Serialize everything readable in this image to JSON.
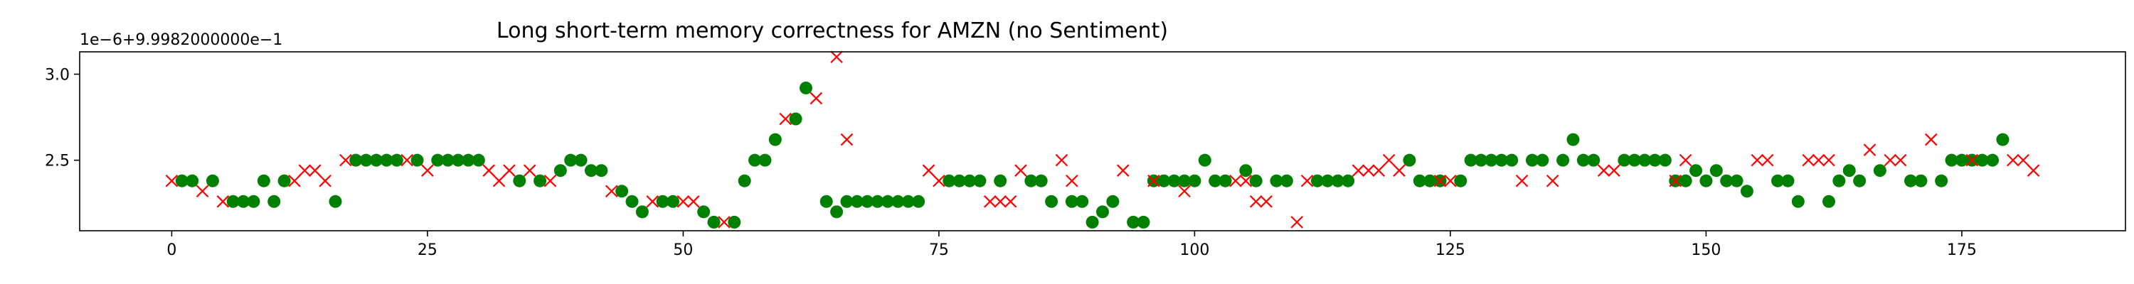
{
  "chart_data": {
    "type": "scatter",
    "title": "Long short-term memory correctness for AMZN (no Sentiment)",
    "offset_text": "1e−6+9.9982000000e−1",
    "xlabel": "",
    "ylabel": "",
    "xlim": [
      -9,
      191
    ],
    "ylim": [
      2.09,
      3.13
    ],
    "xticks": [
      0,
      25,
      50,
      75,
      100,
      125,
      150,
      175
    ],
    "yticks": [
      2.5,
      3.0
    ],
    "ytick_labels": [
      "2.5",
      "3.0"
    ],
    "grid": false,
    "legend": "none",
    "colors": {
      "correct": "#008000",
      "incorrect": "#ff0000"
    },
    "series": [
      {
        "marker": "o",
        "color": "#008000",
        "x": [
          1,
          2,
          4,
          6,
          7,
          8,
          9,
          10,
          11,
          16,
          18,
          19,
          20,
          21,
          22,
          24,
          26,
          27,
          28,
          29,
          30,
          34,
          36,
          38,
          39,
          40,
          41,
          42,
          44,
          45,
          46,
          48,
          49,
          52,
          53,
          55,
          56,
          57,
          58,
          59,
          61,
          62,
          64,
          65,
          66,
          67,
          68,
          69,
          70,
          71,
          72,
          73,
          76,
          77,
          78,
          79,
          81,
          84,
          85,
          86,
          88,
          89,
          90,
          91,
          92,
          94,
          95,
          96,
          97,
          98,
          99,
          100,
          101,
          102,
          103,
          105,
          106,
          108,
          109,
          112,
          113,
          114,
          115,
          121,
          122,
          123,
          124,
          126,
          127,
          128,
          129,
          130,
          131,
          133,
          134,
          136,
          137,
          138,
          139,
          142,
          143,
          144,
          145,
          146,
          147,
          148,
          149,
          150,
          151,
          152,
          153,
          154,
          157,
          158,
          159,
          162,
          163,
          164,
          165,
          167,
          170,
          171,
          173,
          174,
          175,
          176,
          177,
          178,
          179
        ],
        "y": [
          2.38,
          2.38,
          2.38,
          2.26,
          2.26,
          2.26,
          2.38,
          2.26,
          2.38,
          2.26,
          2.5,
          2.5,
          2.5,
          2.5,
          2.5,
          2.5,
          2.5,
          2.5,
          2.5,
          2.5,
          2.5,
          2.38,
          2.38,
          2.44,
          2.5,
          2.5,
          2.44,
          2.44,
          2.32,
          2.26,
          2.2,
          2.26,
          2.26,
          2.2,
          2.14,
          2.14,
          2.38,
          2.5,
          2.5,
          2.62,
          2.74,
          2.92,
          2.26,
          2.2,
          2.26,
          2.26,
          2.26,
          2.26,
          2.26,
          2.26,
          2.26,
          2.26,
          2.38,
          2.38,
          2.38,
          2.38,
          2.38,
          2.38,
          2.38,
          2.26,
          2.26,
          2.26,
          2.14,
          2.2,
          2.26,
          2.14,
          2.14,
          2.38,
          2.38,
          2.38,
          2.38,
          2.38,
          2.5,
          2.38,
          2.38,
          2.44,
          2.38,
          2.38,
          2.38,
          2.38,
          2.38,
          2.38,
          2.38,
          2.5,
          2.38,
          2.38,
          2.38,
          2.38,
          2.5,
          2.5,
          2.5,
          2.5,
          2.5,
          2.5,
          2.5,
          2.5,
          2.62,
          2.5,
          2.5,
          2.5,
          2.5,
          2.5,
          2.5,
          2.5,
          2.38,
          2.38,
          2.44,
          2.38,
          2.44,
          2.38,
          2.38,
          2.32,
          2.38,
          2.38,
          2.26,
          2.26,
          2.38,
          2.44,
          2.38,
          2.44,
          2.38,
          2.38,
          2.38,
          2.5,
          2.5,
          2.5,
          2.5,
          2.5,
          2.62
        ]
      },
      {
        "marker": "x",
        "color": "#ff0000",
        "x": [
          0,
          3,
          5,
          12,
          13,
          14,
          15,
          17,
          23,
          25,
          31,
          32,
          33,
          35,
          37,
          43,
          47,
          50,
          51,
          54,
          60,
          63,
          65,
          66,
          74,
          75,
          80,
          81,
          82,
          83,
          87,
          88,
          93,
          96,
          99,
          104,
          105,
          106,
          107,
          110,
          111,
          116,
          117,
          118,
          119,
          120,
          124,
          125,
          132,
          135,
          140,
          141,
          147,
          148,
          155,
          156,
          160,
          161,
          162,
          166,
          168,
          169,
          172,
          176,
          180,
          181,
          182
        ],
        "y": [
          2.38,
          2.32,
          2.26,
          2.38,
          2.44,
          2.44,
          2.38,
          2.5,
          2.5,
          2.44,
          2.44,
          2.38,
          2.44,
          2.44,
          2.38,
          2.32,
          2.26,
          2.26,
          2.26,
          2.14,
          2.74,
          2.86,
          3.1,
          2.62,
          2.44,
          2.38,
          2.26,
          2.26,
          2.26,
          2.44,
          2.5,
          2.38,
          2.44,
          2.38,
          2.32,
          2.38,
          2.38,
          2.26,
          2.26,
          2.14,
          2.38,
          2.44,
          2.44,
          2.44,
          2.5,
          2.44,
          2.38,
          2.38,
          2.38,
          2.38,
          2.44,
          2.44,
          2.38,
          2.5,
          2.5,
          2.5,
          2.5,
          2.5,
          2.5,
          2.56,
          2.5,
          2.5,
          2.62,
          2.5,
          2.5,
          2.5,
          2.44
        ]
      }
    ]
  }
}
